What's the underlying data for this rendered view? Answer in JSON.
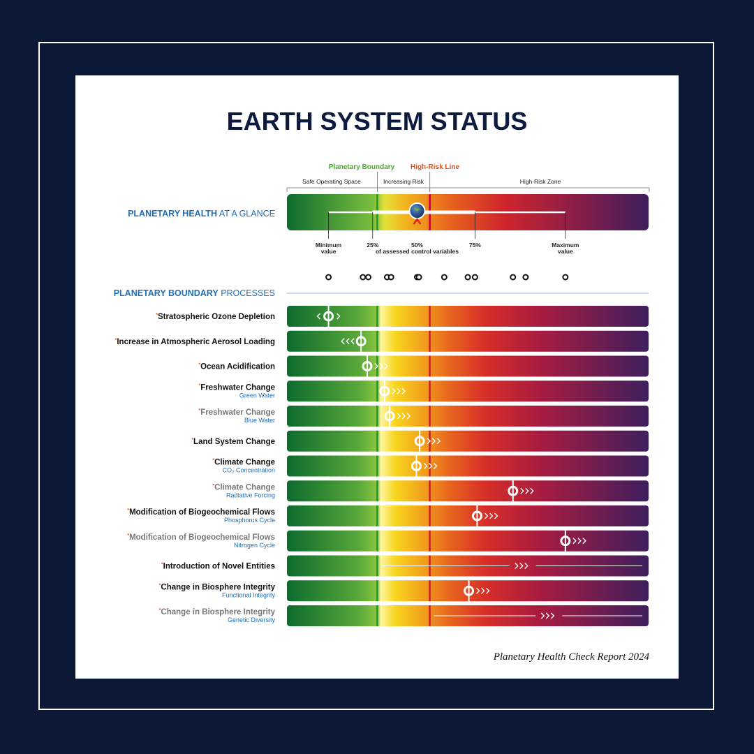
{
  "title": "EARTH SYSTEM STATUS",
  "footer": "Planetary Health Check Report 2024",
  "colors": {
    "frame": "#0b1836",
    "title": "#0d1b3e",
    "accent_blue": "#1f6fb8",
    "boundary_green": "#1e9e3c",
    "high_risk_red": "#c8102e",
    "boundary_label_green": "#4aa82e",
    "high_risk_label_orange": "#e0521c"
  },
  "zones": {
    "planetary_boundary": "Planetary Boundary",
    "high_risk_line": "High-Risk Line",
    "safe": "Safe Operating Space",
    "increasing": "Increasing Risk",
    "high_risk": "High-Risk Zone"
  },
  "glance": {
    "label_strong": "PLANETARY HEALTH",
    "label_rest": " AT A GLANCE",
    "min_label": [
      "Minimum",
      "value"
    ],
    "max_label": [
      "Maximum",
      "value"
    ],
    "tick_25": "25%",
    "tick_50": "50%",
    "tick_75": "75%",
    "caption": "of assessed control variables"
  },
  "processes_heading": {
    "strong": "PLANETARY BOUNDARY",
    "rest": " PROCESSES"
  },
  "chart_data": {
    "type": "bar",
    "title": "EARTH SYSTEM STATUS",
    "scale_note": "position relative to planetary boundary and high-risk line",
    "boundary_position": 0.25,
    "high_risk_position": 0.395,
    "glance_summary": {
      "min": 0.115,
      "q25": 0.237,
      "median": 0.36,
      "q75": 0.52,
      "max": 0.77
    },
    "dot_strip": [
      0.115,
      0.21,
      0.225,
      0.277,
      0.288,
      0.36,
      0.365,
      0.435,
      0.5,
      0.52,
      0.625,
      0.66,
      0.77
    ],
    "processes": [
      {
        "name": "Stratospheric Ozone Depletion",
        "sub": "",
        "value": 0.115,
        "trend": "both",
        "active": true
      },
      {
        "name": "Increase in Atmospheric Aerosol Loading",
        "sub": "",
        "value": 0.205,
        "trend": "left",
        "active": true
      },
      {
        "name": "Ocean Acidification",
        "sub": "",
        "value": 0.222,
        "trend": "right",
        "active": true
      },
      {
        "name": "Freshwater Change",
        "sub": "Green Water",
        "value": 0.27,
        "trend": "right",
        "active": true
      },
      {
        "name": "Freshwater Change",
        "sub": "Blue Water",
        "value": 0.284,
        "trend": "right",
        "active": false
      },
      {
        "name": "Land System Change",
        "sub": "",
        "value": 0.367,
        "trend": "right",
        "active": true
      },
      {
        "name": "Climate Change",
        "sub": "CO₂ Concentration",
        "value": 0.358,
        "trend": "right",
        "active": true
      },
      {
        "name": "Climate Change",
        "sub": "Radiative Forcing",
        "value": 0.625,
        "trend": "right",
        "active": false
      },
      {
        "name": "Modification of Biogeochemical Flows",
        "sub": "Phosphorus Cycle",
        "value": 0.526,
        "trend": "right",
        "active": true
      },
      {
        "name": "Modification of Biogeochemical Flows",
        "sub": "Nitrogen Cycle",
        "value": 0.77,
        "trend": "right",
        "active": false
      },
      {
        "name": "Introduction of Novel Entities",
        "sub": "",
        "value": null,
        "trend": "right",
        "active": true,
        "unquantified_from": 0.25
      },
      {
        "name": "Change in Biosphere Integrity",
        "sub": "Functional Integrity",
        "value": 0.503,
        "trend": "right",
        "active": true
      },
      {
        "name": "Change in Biosphere Integrity",
        "sub": "Genetic Diversity",
        "value": null,
        "trend": "right",
        "active": false,
        "unquantified_from": 0.395
      }
    ]
  }
}
